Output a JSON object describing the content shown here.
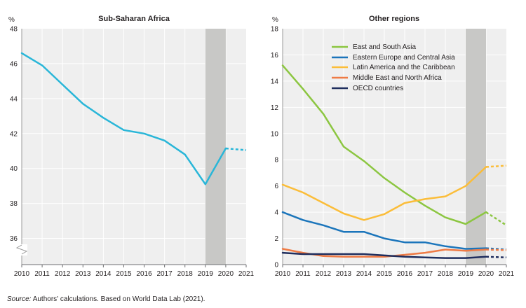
{
  "source": {
    "label": "Source:",
    "text": " Authors' calculations. Based on World Data Lab (2021)."
  },
  "colors": {
    "panel_bg": "#efefef",
    "grid": "#ffffff",
    "shade": "#c8c8c6",
    "ssa_line": "#29b6d8"
  },
  "chart_data": [
    {
      "type": "line",
      "title": "Sub-Saharan Africa",
      "unit_label": "%",
      "x_ticks": [
        "2010",
        "2011",
        "2012",
        "2013",
        "2014",
        "2015",
        "2016",
        "2017",
        "2018",
        "2019",
        "2020",
        "2021"
      ],
      "xlim": [
        2010,
        2021
      ],
      "ylim": [
        34.5,
        48
      ],
      "y_ticks": [
        36,
        38,
        40,
        42,
        44,
        46,
        48
      ],
      "axis_break": true,
      "grid": true,
      "shaded_period": [
        2019,
        2020
      ],
      "series": [
        {
          "color": "#29b6d8",
          "solid": [
            [
              2010,
              46.6
            ],
            [
              2011,
              45.9
            ],
            [
              2012,
              44.8
            ],
            [
              2013,
              43.7
            ],
            [
              2014,
              42.9
            ],
            [
              2015,
              42.2
            ],
            [
              2016,
              42.0
            ],
            [
              2017,
              41.6
            ],
            [
              2018,
              40.8
            ],
            [
              2019,
              39.1
            ],
            [
              2020,
              41.15
            ]
          ],
          "dashed": [
            [
              2020,
              41.15
            ],
            [
              2021,
              41.05
            ]
          ]
        }
      ]
    },
    {
      "type": "line",
      "title": "Other regions",
      "unit_label": "%",
      "x_ticks": [
        "2010",
        "2011",
        "2012",
        "2013",
        "2014",
        "2015",
        "2016",
        "2017",
        "2018",
        "2019",
        "2020",
        "2021"
      ],
      "xlim": [
        2010,
        2021
      ],
      "ylim": [
        0,
        18
      ],
      "y_ticks": [
        0,
        2,
        4,
        6,
        8,
        10,
        12,
        14,
        16,
        18
      ],
      "grid": true,
      "shaded_period": [
        2019,
        2020
      ],
      "legend_position": "top-center",
      "series": [
        {
          "name": "East and South Asia",
          "color": "#8cc641",
          "solid": [
            [
              2010,
              15.2
            ],
            [
              2011,
              13.4
            ],
            [
              2012,
              11.5
            ],
            [
              2013,
              9.0
            ],
            [
              2014,
              7.9
            ],
            [
              2015,
              6.6
            ],
            [
              2016,
              5.5
            ],
            [
              2017,
              4.5
            ],
            [
              2018,
              3.6
            ],
            [
              2019,
              3.1
            ],
            [
              2020,
              4.0
            ]
          ],
          "dashed": [
            [
              2020,
              4.0
            ],
            [
              2021,
              3.0
            ]
          ]
        },
        {
          "name": "Eastern Europe and Central Asia",
          "color": "#1b75bb",
          "solid": [
            [
              2010,
              4.0
            ],
            [
              2011,
              3.4
            ],
            [
              2012,
              3.0
            ],
            [
              2013,
              2.5
            ],
            [
              2014,
              2.5
            ],
            [
              2015,
              2.0
            ],
            [
              2016,
              1.7
            ],
            [
              2017,
              1.7
            ],
            [
              2018,
              1.4
            ],
            [
              2019,
              1.2
            ],
            [
              2020,
              1.25
            ]
          ],
          "dashed": [
            [
              2020,
              1.25
            ],
            [
              2021,
              1.15
            ]
          ]
        },
        {
          "name": "Latin America and the Caribbean",
          "color": "#fbbd39",
          "solid": [
            [
              2010,
              6.1
            ],
            [
              2011,
              5.5
            ],
            [
              2012,
              4.7
            ],
            [
              2013,
              3.9
            ],
            [
              2014,
              3.4
            ],
            [
              2015,
              3.85
            ],
            [
              2016,
              4.7
            ],
            [
              2017,
              5.0
            ],
            [
              2018,
              5.2
            ],
            [
              2019,
              6.0
            ],
            [
              2020,
              7.45
            ]
          ],
          "dashed": [
            [
              2020,
              7.45
            ],
            [
              2021,
              7.55
            ]
          ]
        },
        {
          "name": "Middle East and North Africa",
          "color": "#ef7b45",
          "solid": [
            [
              2010,
              1.2
            ],
            [
              2011,
              0.9
            ],
            [
              2012,
              0.65
            ],
            [
              2013,
              0.6
            ],
            [
              2014,
              0.6
            ],
            [
              2015,
              0.6
            ],
            [
              2016,
              0.75
            ],
            [
              2017,
              0.9
            ],
            [
              2018,
              1.15
            ],
            [
              2019,
              1.05
            ],
            [
              2020,
              1.15
            ]
          ],
          "dashed": [
            [
              2020,
              1.15
            ],
            [
              2021,
              1.1
            ]
          ]
        },
        {
          "name": "OECD countries",
          "color": "#1f2e5e",
          "solid": [
            [
              2010,
              0.9
            ],
            [
              2011,
              0.8
            ],
            [
              2012,
              0.8
            ],
            [
              2013,
              0.8
            ],
            [
              2014,
              0.8
            ],
            [
              2015,
              0.7
            ],
            [
              2016,
              0.6
            ],
            [
              2017,
              0.55
            ],
            [
              2018,
              0.5
            ],
            [
              2019,
              0.5
            ],
            [
              2020,
              0.6
            ]
          ],
          "dashed": [
            [
              2020,
              0.6
            ],
            [
              2021,
              0.55
            ]
          ]
        }
      ]
    }
  ]
}
